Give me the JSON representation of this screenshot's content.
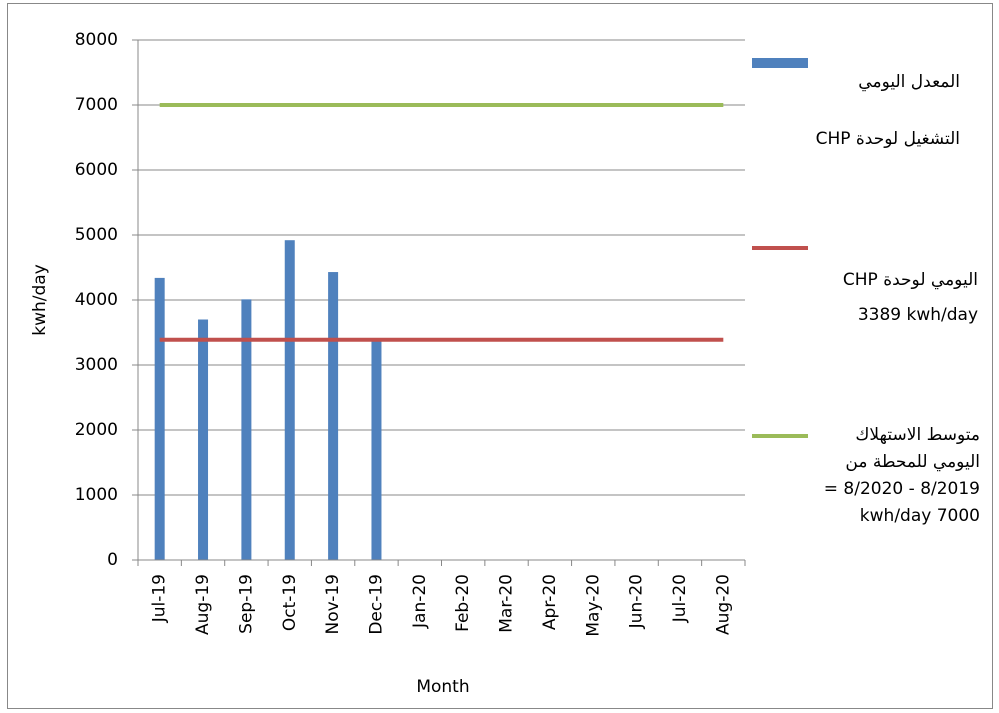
{
  "chart_data": {
    "type": "bar",
    "x_label": "Month",
    "y_label": "kwh/day",
    "categories": [
      "Jul-19",
      "Aug-19",
      "Sep-19",
      "Oct-19",
      "Nov-19",
      "Dec-19",
      "Jan-20",
      "Feb-20",
      "Mar-20",
      "Apr-20",
      "May-20",
      "Jun-20",
      "Jul-20",
      "Aug-20"
    ],
    "series": [
      {
        "name": "المعدل اليومي التشغيل لوحدة CHP",
        "type": "bar",
        "color": "#4f81bd",
        "values": [
          4340,
          3700,
          4010,
          4920,
          4430,
          3390,
          null,
          null,
          null,
          null,
          null,
          null,
          null,
          null
        ]
      },
      {
        "name": "اليومي لوحدة CHP 3389 kwh/day",
        "type": "line",
        "color": "#c0504d",
        "values": [
          3389,
          3389,
          3389,
          3389,
          3389,
          3389,
          3389,
          3389,
          3389,
          3389,
          3389,
          3389,
          3389,
          3389
        ]
      },
      {
        "name": "متوسط الاستهلاك اليومي للمحطة من 8/2019 - 8/2020 = 7000 kwh/day",
        "type": "line",
        "color": "#9bbb59",
        "values": [
          7000,
          7000,
          7000,
          7000,
          7000,
          7000,
          7000,
          7000,
          7000,
          7000,
          7000,
          7000,
          7000,
          7000
        ]
      }
    ],
    "ylim": [
      0,
      8000
    ],
    "yticks": [
      0,
      1000,
      2000,
      3000,
      4000,
      5000,
      6000,
      7000,
      8000
    ],
    "grid": true
  }
}
